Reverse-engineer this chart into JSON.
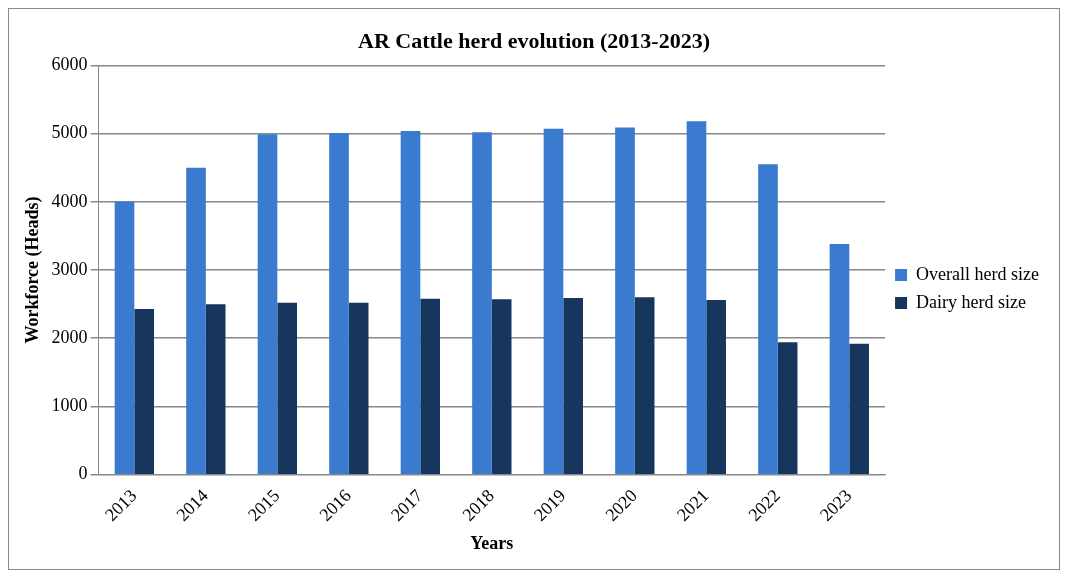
{
  "chart_data": {
    "type": "bar",
    "title": "AR Cattle herd evolution (2013-2023)",
    "xlabel": "Years",
    "ylabel": "Workforce (Heads)",
    "categories": [
      "2013",
      "2014",
      "2015",
      "2016",
      "2017",
      "2018",
      "2019",
      "2020",
      "2021",
      "2022",
      "2023"
    ],
    "series": [
      {
        "name": "Overall herd size",
        "color": "#3a7bd0",
        "values": [
          4000,
          4500,
          4990,
          5010,
          5040,
          5020,
          5070,
          5090,
          5180,
          4550,
          3380
        ]
      },
      {
        "name": "Dairy herd size",
        "color": "#17365d",
        "values": [
          2430,
          2500,
          2520,
          2520,
          2580,
          2570,
          2590,
          2600,
          2560,
          1940,
          1920
        ]
      }
    ],
    "ylim": [
      0,
      6000
    ],
    "yticks": [
      0,
      1000,
      2000,
      3000,
      4000,
      5000,
      6000
    ],
    "grid": "y",
    "legend": "right"
  }
}
